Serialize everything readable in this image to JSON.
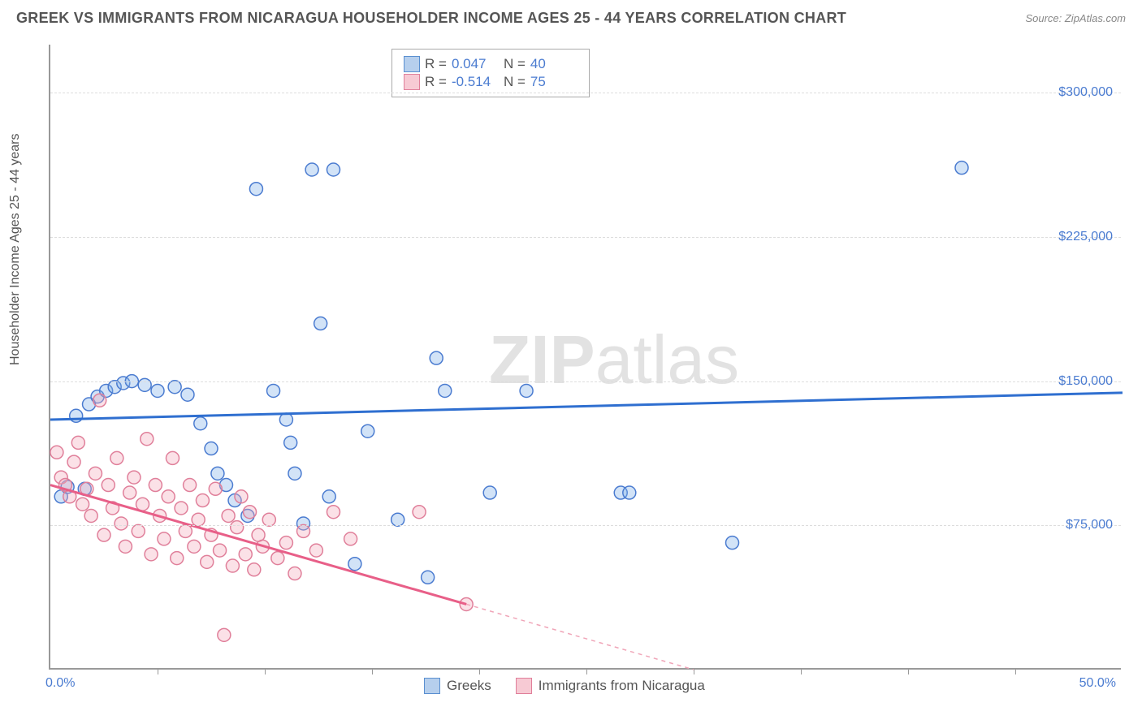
{
  "title": "GREEK VS IMMIGRANTS FROM NICARAGUA HOUSEHOLDER INCOME AGES 25 - 44 YEARS CORRELATION CHART",
  "source": "Source: ZipAtlas.com",
  "ylabel": "Householder Income Ages 25 - 44 years",
  "watermark_bold": "ZIP",
  "watermark_rest": "atlas",
  "chart": {
    "type": "scatter",
    "xlim": [
      0,
      50
    ],
    "ylim": [
      0,
      325000
    ],
    "x_tick_labels": {
      "0": "0.0%",
      "50": "50.0%"
    },
    "x_ticks": [
      5,
      10,
      15,
      20,
      25,
      30,
      35,
      40,
      45
    ],
    "y_ticks": [
      75000,
      150000,
      225000,
      300000
    ],
    "y_tick_labels": {
      "75000": "$75,000",
      "150000": "$150,000",
      "225000": "$225,000",
      "300000": "$300,000"
    },
    "grid_color": "#dddddd",
    "background_color": "#ffffff",
    "marker_radius": 8,
    "series": [
      {
        "name": "Greeks",
        "color": "#7fb0e8",
        "stroke": "#4a7bd0",
        "trend_color": "#2f6fd0",
        "R": "0.047",
        "N": "40",
        "trend": {
          "x1": 0,
          "y1": 130000,
          "x2": 50,
          "y2": 144000,
          "dash_from": 50
        },
        "points": [
          [
            0.5,
            90000
          ],
          [
            0.8,
            95000
          ],
          [
            1.2,
            132000
          ],
          [
            1.6,
            94000
          ],
          [
            1.8,
            138000
          ],
          [
            2.2,
            142000
          ],
          [
            2.6,
            145000
          ],
          [
            3.0,
            147000
          ],
          [
            3.4,
            149000
          ],
          [
            3.8,
            150000
          ],
          [
            4.4,
            148000
          ],
          [
            5.0,
            145000
          ],
          [
            5.8,
            147000
          ],
          [
            6.4,
            143000
          ],
          [
            7.0,
            128000
          ],
          [
            7.5,
            115000
          ],
          [
            7.8,
            102000
          ],
          [
            8.2,
            96000
          ],
          [
            8.6,
            88000
          ],
          [
            9.2,
            80000
          ],
          [
            9.6,
            250000
          ],
          [
            10.4,
            145000
          ],
          [
            11.0,
            130000
          ],
          [
            11.2,
            118000
          ],
          [
            11.4,
            102000
          ],
          [
            11.8,
            76000
          ],
          [
            12.2,
            260000
          ],
          [
            13.2,
            260000
          ],
          [
            12.6,
            180000
          ],
          [
            13.0,
            90000
          ],
          [
            14.2,
            55000
          ],
          [
            14.8,
            124000
          ],
          [
            16.2,
            78000
          ],
          [
            17.6,
            48000
          ],
          [
            18.0,
            162000
          ],
          [
            18.4,
            145000
          ],
          [
            20.5,
            92000
          ],
          [
            22.2,
            145000
          ],
          [
            26.6,
            92000
          ],
          [
            27.0,
            92000
          ],
          [
            31.8,
            66000
          ],
          [
            42.5,
            261000
          ]
        ]
      },
      {
        "name": "Immigrants from Nicaragua",
        "color": "#f4a8bb",
        "stroke": "#e07f9a",
        "trend_color": "#e85f88",
        "R": "-0.514",
        "N": "75",
        "trend": {
          "x1": 0,
          "y1": 96000,
          "x2": 19.4,
          "y2": 34000,
          "dash_to_x": 30,
          "dash_to_y": 0
        },
        "points": [
          [
            0.3,
            113000
          ],
          [
            0.5,
            100000
          ],
          [
            0.7,
            96000
          ],
          [
            0.9,
            90000
          ],
          [
            1.1,
            108000
          ],
          [
            1.3,
            118000
          ],
          [
            1.5,
            86000
          ],
          [
            1.7,
            94000
          ],
          [
            1.9,
            80000
          ],
          [
            2.1,
            102000
          ],
          [
            2.3,
            140000
          ],
          [
            2.5,
            70000
          ],
          [
            2.7,
            96000
          ],
          [
            2.9,
            84000
          ],
          [
            3.1,
            110000
          ],
          [
            3.3,
            76000
          ],
          [
            3.5,
            64000
          ],
          [
            3.7,
            92000
          ],
          [
            3.9,
            100000
          ],
          [
            4.1,
            72000
          ],
          [
            4.3,
            86000
          ],
          [
            4.5,
            120000
          ],
          [
            4.7,
            60000
          ],
          [
            4.9,
            96000
          ],
          [
            5.1,
            80000
          ],
          [
            5.3,
            68000
          ],
          [
            5.5,
            90000
          ],
          [
            5.7,
            110000
          ],
          [
            5.9,
            58000
          ],
          [
            6.1,
            84000
          ],
          [
            6.3,
            72000
          ],
          [
            6.5,
            96000
          ],
          [
            6.7,
            64000
          ],
          [
            6.9,
            78000
          ],
          [
            7.1,
            88000
          ],
          [
            7.3,
            56000
          ],
          [
            7.5,
            70000
          ],
          [
            7.7,
            94000
          ],
          [
            7.9,
            62000
          ],
          [
            8.1,
            18000
          ],
          [
            8.3,
            80000
          ],
          [
            8.5,
            54000
          ],
          [
            8.7,
            74000
          ],
          [
            8.9,
            90000
          ],
          [
            9.1,
            60000
          ],
          [
            9.3,
            82000
          ],
          [
            9.5,
            52000
          ],
          [
            9.7,
            70000
          ],
          [
            9.9,
            64000
          ],
          [
            10.2,
            78000
          ],
          [
            10.6,
            58000
          ],
          [
            11.0,
            66000
          ],
          [
            11.4,
            50000
          ],
          [
            11.8,
            72000
          ],
          [
            12.4,
            62000
          ],
          [
            13.2,
            82000
          ],
          [
            14.0,
            68000
          ],
          [
            17.2,
            82000
          ],
          [
            19.4,
            34000
          ]
        ]
      }
    ]
  },
  "legend": {
    "series1": "Greeks",
    "series2": "Immigrants from Nicaragua"
  },
  "stats_labels": {
    "r": "R  =",
    "n": "N  ="
  }
}
